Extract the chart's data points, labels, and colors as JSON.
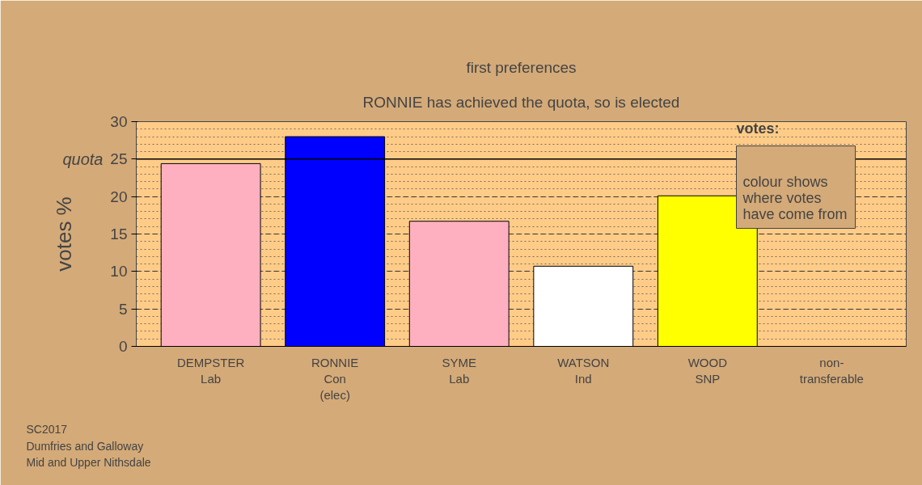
{
  "chart_data": {
    "type": "bar",
    "title": "first preferences",
    "subtitle": "RONNIE has achieved the quota, so is elected",
    "ylabel": "votes %",
    "categories": [
      "DEMPSTER\nLab",
      "RONNIE\nCon\n(elec)",
      "SYME\nLab",
      "WATSON\nInd",
      "WOOD\nSNP",
      "non-\ntransferable"
    ],
    "values": [
      24.4,
      28.0,
      16.7,
      10.7,
      20.1,
      0
    ],
    "colors": [
      "#ffb0c0",
      "#0000ff",
      "#ffb0c0",
      "#ffffff",
      "#ffff00",
      "#ffffff"
    ],
    "ylim": [
      0,
      30
    ],
    "yticks": [
      0,
      5,
      10,
      15,
      20,
      25,
      30
    ],
    "grid": "y",
    "ref_lines": [
      {
        "axis": "y",
        "value": 25,
        "label": "quota",
        "color": "#000000",
        "line_style": "solid"
      }
    ],
    "annotations": [
      "votes:",
      "colour shows\nwhere votes\nhave come from",
      "SC2017\nDumfries and Galloway\nMid and Upper Nithsdale"
    ]
  }
}
